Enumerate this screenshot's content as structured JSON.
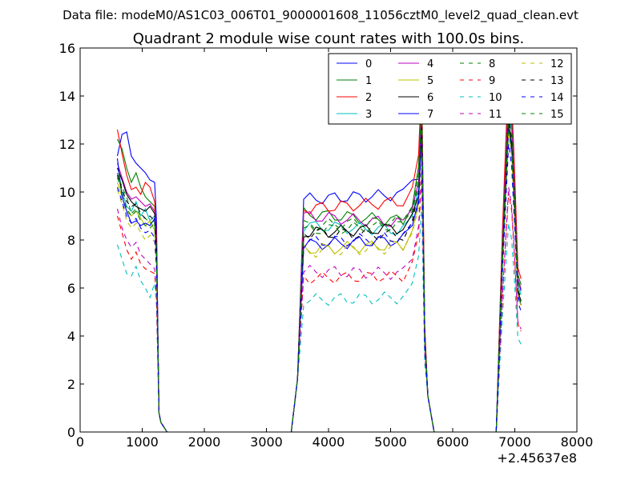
{
  "figure": {
    "suptitle": "Data file: modeM0/AS1C03_006T01_9000001608_11056cztM0_level2_quad_clean.evt"
  },
  "chart_data": {
    "type": "line",
    "title": "Quadrant 2 module wise count rates with 100.0s bins.",
    "xlabel": "",
    "ylabel": "",
    "xlim": [
      0,
      8000
    ],
    "ylim": [
      0,
      16
    ],
    "x_ticks": [
      0,
      1000,
      2000,
      3000,
      4000,
      5000,
      6000,
      7000,
      8000
    ],
    "y_ticks": [
      0,
      2,
      4,
      6,
      8,
      10,
      12,
      14,
      16
    ],
    "x_offset_label": "+2.45637e8",
    "grid": false,
    "legend_position": "top-right",
    "legend_columns": 4,
    "segments": [
      {
        "start": 600,
        "end": 1300
      },
      {
        "start": 1400,
        "end": 3400
      },
      {
        "start": 3400,
        "end": 5700
      },
      {
        "start": 5700,
        "end": 6700
      },
      {
        "start": 6700,
        "end": 7100
      }
    ],
    "series": [
      {
        "name": "0",
        "color": "#0000ff",
        "dash": "solid",
        "seg1": [
          11.5,
          12.4,
          12.5,
          11.5,
          11.2,
          11.0,
          10.8,
          10.5,
          10.4
        ],
        "plateau": [
          9.7,
          9.9
        ],
        "peak": 13.5,
        "flare": 14.0
      },
      {
        "name": "1",
        "color": "#008000",
        "dash": "solid",
        "seg1": [
          12.2,
          11.8,
          11.0,
          10.4,
          10.8,
          10.2,
          9.8,
          9.6,
          9.4
        ],
        "plateau": [
          9.1,
          8.8
        ],
        "peak": 14.2,
        "flare": 14.6
      },
      {
        "name": "2",
        "color": "#ff0000",
        "dash": "solid",
        "seg1": [
          12.6,
          11.6,
          10.7,
          10.1,
          10.2,
          9.9,
          10.4,
          10.2,
          9.6
        ],
        "plateau": [
          9.3,
          9.6
        ],
        "peak": 14.8,
        "flare": 15.2
      },
      {
        "name": "3",
        "color": "#00bfbf",
        "dash": "solid",
        "seg1": [
          10.8,
          10.0,
          9.4,
          9.2,
          9.6,
          9.0,
          9.3,
          8.8,
          9.0
        ],
        "plateau": [
          8.6,
          8.4
        ],
        "peak": 13.0,
        "flare": 13.6
      },
      {
        "name": "4",
        "color": "#bf00bf",
        "dash": "solid",
        "seg1": [
          11.2,
          10.6,
          10.0,
          9.7,
          9.8,
          9.6,
          9.4,
          9.5,
          9.2
        ],
        "plateau": [
          9.0,
          8.7
        ],
        "peak": 13.4,
        "flare": 14.2
      },
      {
        "name": "5",
        "color": "#bfbf00",
        "dash": "solid",
        "seg1": [
          10.4,
          9.8,
          9.2,
          9.0,
          9.2,
          8.9,
          8.6,
          8.8,
          8.4
        ],
        "plateau": [
          7.6,
          7.8
        ],
        "peak": 12.2,
        "flare": 13.0
      },
      {
        "name": "6",
        "color": "#000000",
        "dash": "solid",
        "seg1": [
          11.0,
          10.5,
          9.9,
          9.6,
          9.4,
          9.3,
          9.2,
          9.4,
          9.1
        ],
        "plateau": [
          8.3,
          8.5
        ],
        "peak": 12.6,
        "flare": 13.0
      },
      {
        "name": "7",
        "color": "#0000ff",
        "dash": "solid",
        "seg1": [
          11.4,
          9.8,
          9.2,
          8.7,
          8.8,
          8.6,
          8.7,
          8.6,
          8.9
        ],
        "plateau": [
          7.8,
          8.0
        ],
        "peak": 12.4,
        "flare": 12.6
      },
      {
        "name": "8",
        "color": "#008000",
        "dash": "dashed",
        "seg1": [
          10.8,
          10.2,
          9.8,
          9.1,
          9.3,
          9.0,
          8.9,
          8.7,
          8.8
        ],
        "plateau": [
          8.6,
          8.8
        ],
        "peak": 13.8,
        "flare": 14.0
      },
      {
        "name": "9",
        "color": "#ff0000",
        "dash": "dashed",
        "seg1": [
          9.0,
          8.3,
          7.6,
          7.2,
          7.5,
          7.0,
          6.8,
          6.7,
          6.6
        ],
        "plateau": [
          6.4,
          6.5
        ],
        "peak": 10.6,
        "flare": 10.0
      },
      {
        "name": "10",
        "color": "#00bfbf",
        "dash": "dashed",
        "seg1": [
          7.8,
          7.2,
          6.6,
          6.5,
          6.9,
          6.3,
          6.0,
          5.6,
          6.2
        ],
        "plateau": [
          5.5,
          5.6
        ],
        "peak": 9.4,
        "flare": 8.7
      },
      {
        "name": "11",
        "color": "#bf00bf",
        "dash": "dashed",
        "seg1": [
          9.3,
          8.5,
          8.0,
          7.7,
          7.9,
          7.4,
          7.2,
          7.0,
          6.8
        ],
        "plateau": [
          6.7,
          6.6
        ],
        "peak": 11.0,
        "flare": 10.2
      },
      {
        "name": "12",
        "color": "#bfbf00",
        "dash": "dashed",
        "seg1": [
          10.1,
          9.5,
          8.8,
          8.5,
          8.7,
          8.3,
          8.0,
          8.2,
          7.9
        ],
        "plateau": [
          7.5,
          7.7
        ],
        "peak": 12.0,
        "flare": 12.5
      },
      {
        "name": "13",
        "color": "#000000",
        "dash": "dashed",
        "seg1": [
          10.7,
          10.1,
          9.6,
          9.4,
          9.5,
          9.1,
          8.9,
          9.0,
          8.8
        ],
        "plateau": [
          8.3,
          8.2
        ],
        "peak": 12.8,
        "flare": 13.2
      },
      {
        "name": "14",
        "color": "#0000ff",
        "dash": "dashed",
        "seg1": [
          10.2,
          9.6,
          9.0,
          8.7,
          8.9,
          8.5,
          8.3,
          8.4,
          8.1
        ],
        "plateau": [
          7.9,
          8.1
        ],
        "peak": 12.2,
        "flare": 12.0
      },
      {
        "name": "15",
        "color": "#008000",
        "dash": "dashed",
        "seg1": [
          10.6,
          10.0,
          9.3,
          9.0,
          9.2,
          8.8,
          8.6,
          8.5,
          8.7
        ],
        "plateau": [
          8.4,
          8.6
        ],
        "peak": 13.2,
        "flare": 12.8
      }
    ]
  }
}
